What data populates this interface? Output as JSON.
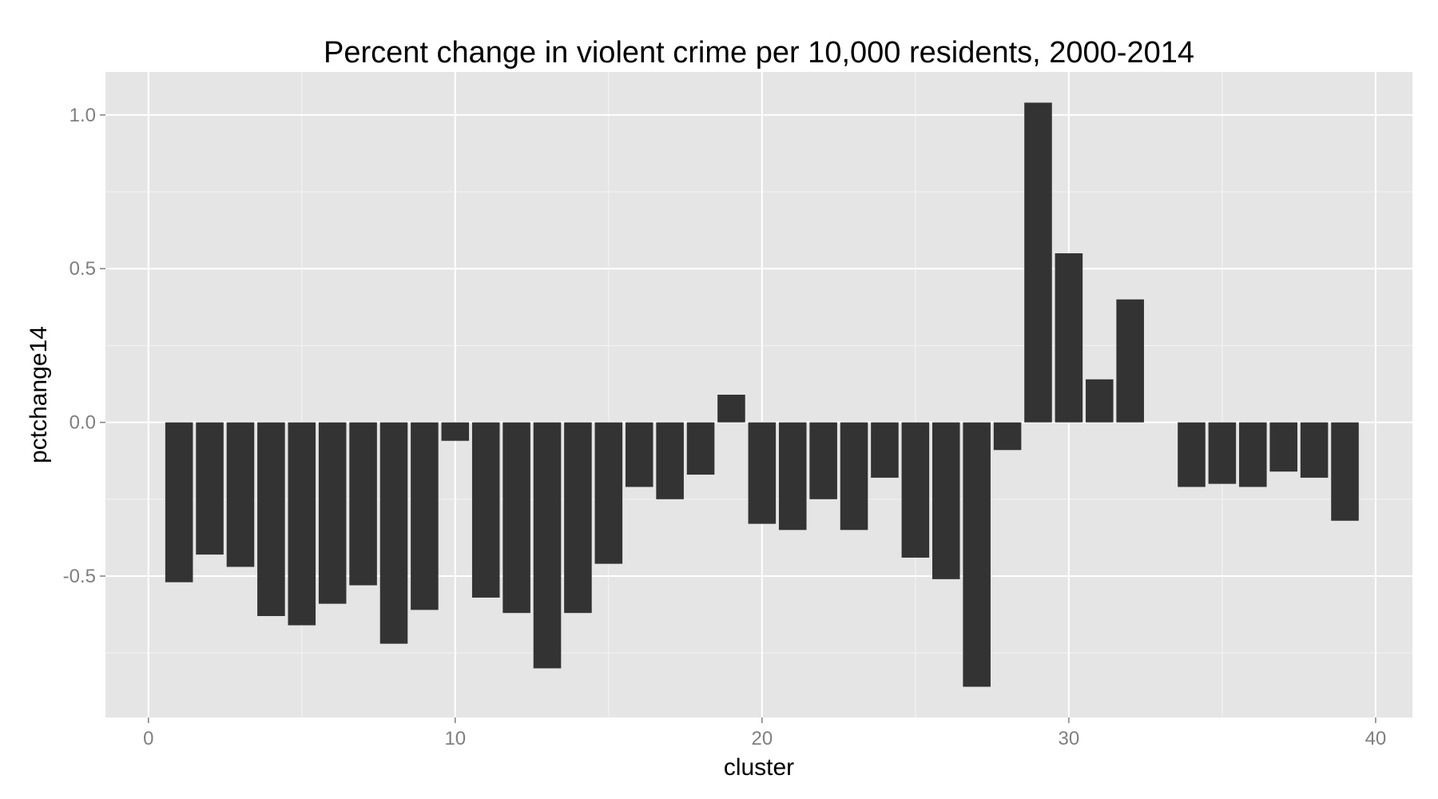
{
  "chart_data": {
    "type": "bar",
    "title": "Percent change in violent crime per 10,000 residents, 2000-2014",
    "xlabel": "cluster",
    "ylabel": "pctchange14",
    "x": [
      1,
      2,
      3,
      4,
      5,
      6,
      7,
      8,
      9,
      10,
      11,
      12,
      13,
      14,
      15,
      16,
      17,
      18,
      19,
      20,
      21,
      22,
      23,
      24,
      25,
      26,
      27,
      28,
      29,
      30,
      31,
      32,
      34,
      35,
      36,
      37,
      38,
      39
    ],
    "values": [
      -0.52,
      -0.43,
      -0.47,
      -0.63,
      -0.66,
      -0.59,
      -0.53,
      -0.72,
      -0.61,
      -0.06,
      -0.57,
      -0.62,
      -0.8,
      -0.62,
      -0.46,
      -0.21,
      -0.25,
      -0.17,
      0.09,
      -0.33,
      -0.35,
      -0.25,
      -0.35,
      -0.18,
      -0.44,
      -0.51,
      -0.86,
      -0.09,
      1.04,
      0.55,
      0.14,
      0.4,
      -0.21,
      -0.2,
      -0.21,
      -0.16,
      -0.18,
      -0.32
    ],
    "xlim": [
      -1.4,
      41.2
    ],
    "ylim": [
      -0.96,
      1.14
    ],
    "x_ticks": [
      0,
      10,
      20,
      30,
      40
    ],
    "x_tick_labels": [
      "0",
      "10",
      "20",
      "30",
      "40"
    ],
    "y_ticks": [
      -0.5,
      0.0,
      0.5,
      1.0
    ],
    "y_tick_labels": [
      "-0.5",
      "0.0",
      "0.5",
      "1.0"
    ],
    "grid": true,
    "colors": {
      "panel_background": "#e5e5e5",
      "grid_major": "#ffffff",
      "grid_minor": "#f2f2f2",
      "bar_fill": "#333333",
      "tick_text": "#7f7f7f",
      "tick_mark": "#7f7f7f"
    }
  }
}
